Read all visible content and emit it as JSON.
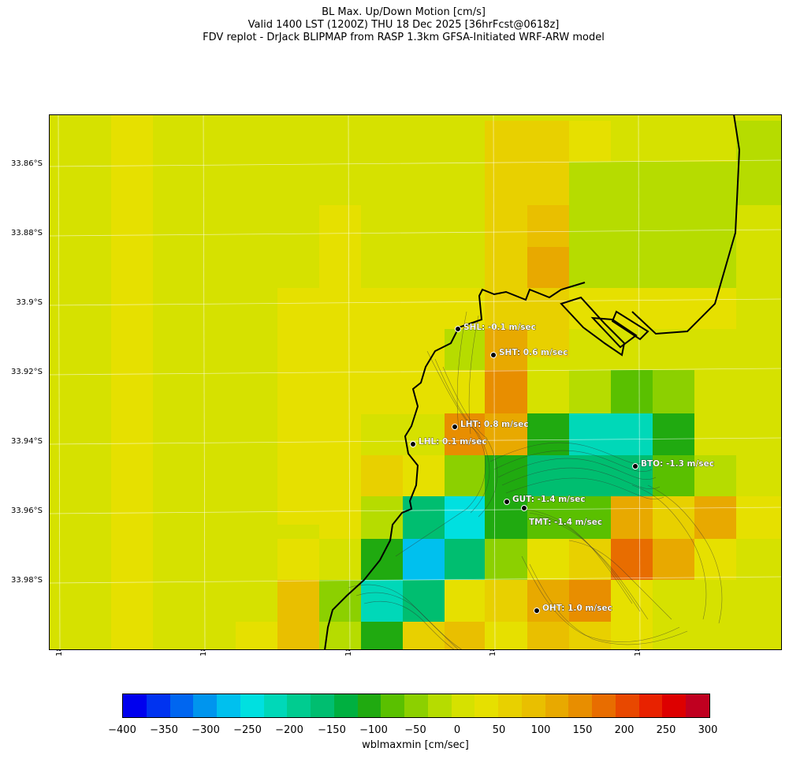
{
  "header": {
    "line1": "BL Max. Up/Down Motion [cm/s]",
    "line2": "Valid 1400 LST (1200Z) THU 18 Dec 2025 [36hrFcst@0618z]",
    "line3": "FDV replot - DrJack BLIPMAP from RASP 1.3km GFSA-Initiated WRF-ARW model"
  },
  "axes": {
    "lat_labels": [
      "33.86°S",
      "33.88°S",
      "33.9°S",
      "33.92°S",
      "33.94°S",
      "33.96°S",
      "33.98°S"
    ],
    "lon_labels": [
      "18.25°E",
      "18.3°E",
      "18.35°E",
      "18.4°E",
      "18.45°E"
    ]
  },
  "stations": [
    {
      "code": "SHL",
      "label": "SHL: -0.1 m/sec"
    },
    {
      "code": "SHT",
      "label": "SHT: 0.6 m/sec"
    },
    {
      "code": "LHT",
      "label": "LHT: 0.8 m/sec"
    },
    {
      "code": "LHL",
      "label": "LHL: 0.1 m/sec"
    },
    {
      "code": "BTO",
      "label": "BTO: -1.3 m/sec"
    },
    {
      "code": "GUT",
      "label": "GUT: -1.4 m/sec"
    },
    {
      "code": "TMT",
      "label": "TMT: -1.4 m/sec"
    },
    {
      "code": "OHT",
      "label": "OHT: 1.0 m/sec"
    }
  ],
  "colorbar": {
    "label": "wblmaxmin [cm/sec]",
    "ticks": [
      "−400",
      "−350",
      "−300",
      "−250",
      "−200",
      "−150",
      "−100",
      "−50",
      "0",
      "50",
      "100",
      "150",
      "200",
      "250",
      "300"
    ],
    "colors": [
      "#0000ee",
      "#0033f0",
      "#0066f0",
      "#0095ee",
      "#00c0ee",
      "#00e0e0",
      "#00d8b8",
      "#00cc90",
      "#00be70",
      "#00b040",
      "#20aa10",
      "#5ac000",
      "#8cd000",
      "#b6dc00",
      "#d6e100",
      "#e6e000",
      "#e8d000",
      "#e9bf00",
      "#e8a900",
      "#e88e00",
      "#e86d00",
      "#e84800",
      "#e82200",
      "#dd0000",
      "#c00020"
    ],
    "palette_note_values": [
      -400,
      300
    ]
  }
}
